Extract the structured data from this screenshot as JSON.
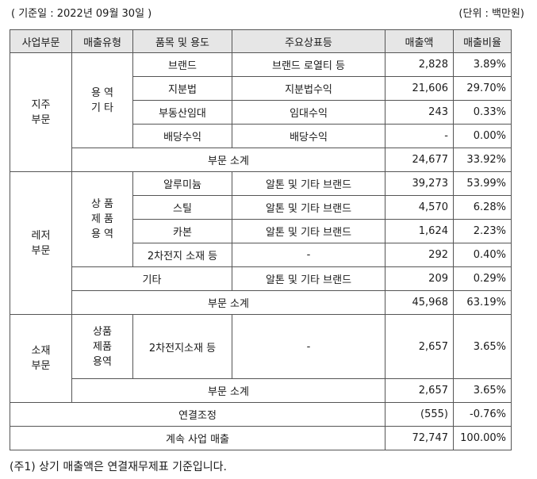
{
  "header": {
    "base_date": "( 기준일 : 2022년 09월 30일 )",
    "unit": "(단위 : 백만원)"
  },
  "columns": [
    "사업부문",
    "매출유형",
    "품목 및 용도",
    "주요상표등",
    "매출액",
    "매출비율"
  ],
  "holding": {
    "segment": [
      "지주",
      "부문"
    ],
    "type": [
      "용 역",
      "기 타"
    ],
    "rows": [
      {
        "item": "브랜드",
        "brand": "브랜드 로열티 등",
        "sales": "2,828",
        "ratio": "3.89%"
      },
      {
        "item": "지분법",
        "brand": "지분법수익",
        "sales": "21,606",
        "ratio": "29.70%"
      },
      {
        "item": "부동산임대",
        "brand": "임대수익",
        "sales": "243",
        "ratio": "0.33%"
      },
      {
        "item": "배당수익",
        "brand": "배당수익",
        "sales": "-",
        "ratio": "0.00%"
      }
    ],
    "subtotal": {
      "label": "부문 소계",
      "sales": "24,677",
      "ratio": "33.92%"
    }
  },
  "leisure": {
    "segment": [
      "레저",
      "부문"
    ],
    "type": [
      "상 품",
      "제 품",
      "용 역"
    ],
    "rows": [
      {
        "item": "알루미늄",
        "brand": "알톤 및 기타 브랜드",
        "sales": "39,273",
        "ratio": "53.99%"
      },
      {
        "item": "스틸",
        "brand": "알톤 및 기타 브랜드",
        "sales": "4,570",
        "ratio": "6.28%"
      },
      {
        "item": "카본",
        "brand": "알톤 및 기타 브랜드",
        "sales": "1,624",
        "ratio": "2.23%"
      },
      {
        "item": "2차전지 소재 등",
        "brand": "-",
        "sales": "292",
        "ratio": "0.40%"
      }
    ],
    "other": {
      "item": "기타",
      "brand": "알톤 및 기타 브랜드",
      "sales": "209",
      "ratio": "0.29%"
    },
    "subtotal": {
      "label": "부문 소계",
      "sales": "45,968",
      "ratio": "63.19%"
    }
  },
  "materials": {
    "segment": [
      "소재",
      "부문"
    ],
    "type": [
      "상품",
      "제품",
      "용역"
    ],
    "row": {
      "item": "2차전지소재 등",
      "brand": "-",
      "sales": "2,657",
      "ratio": "3.65%"
    },
    "subtotal": {
      "label": "부문 소계",
      "sales": "2,657",
      "ratio": "3.65%"
    }
  },
  "adjustment": {
    "label": "연결조정",
    "sales": "(555)",
    "ratio": "-0.76%"
  },
  "total": {
    "label": "계속 사업 매출",
    "sales": "72,747",
    "ratio": "100.00%"
  },
  "footnote": "(주1) 상기 매출액은 연결재무제표 기준입니다."
}
